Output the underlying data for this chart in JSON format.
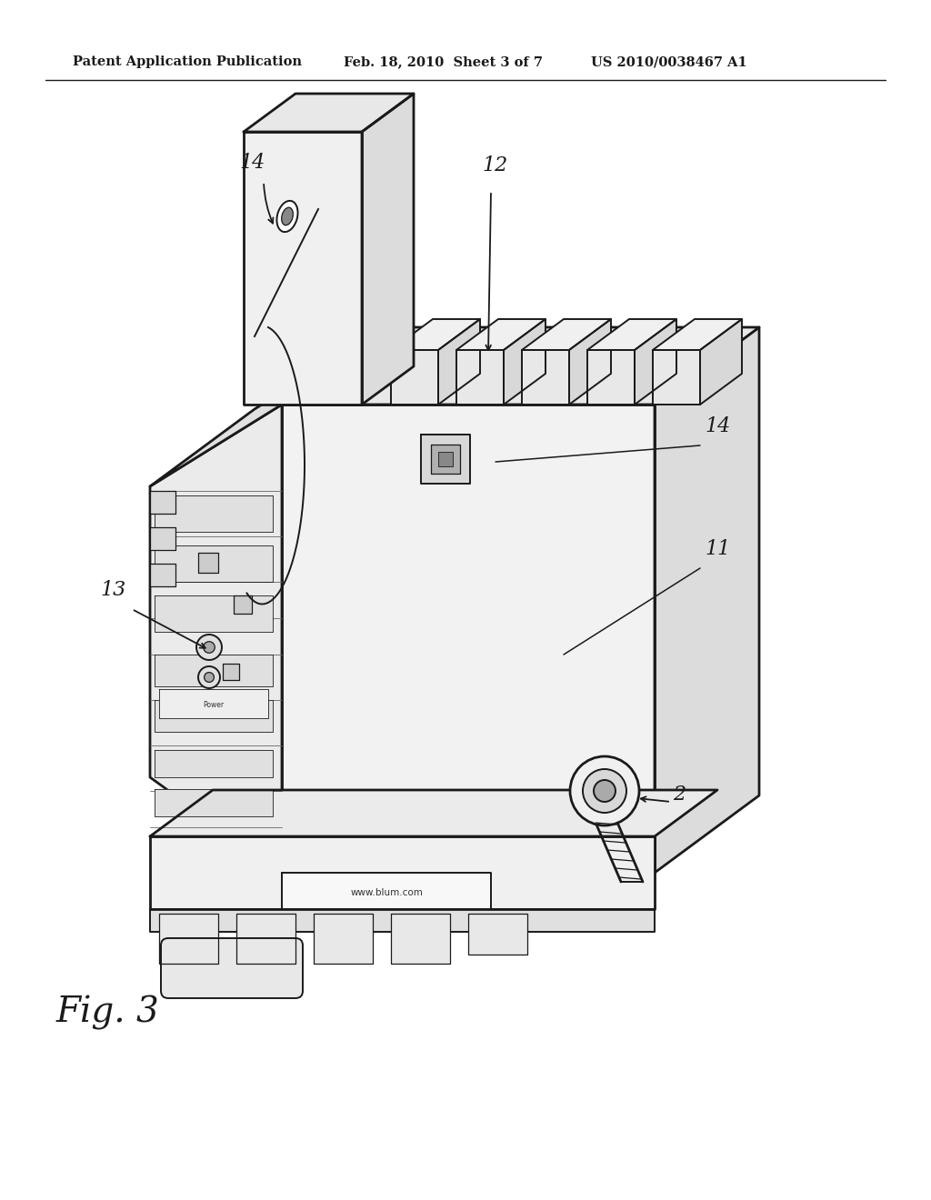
{
  "header_left": "Patent Application Publication",
  "header_center": "Feb. 18, 2010  Sheet 3 of 7",
  "header_right": "US 2010/0038467 A1",
  "figure_label": "Fig. 3",
  "bg_color": "#ffffff",
  "line_color": "#1a1a1a",
  "label_2": "2",
  "label_11": "11",
  "label_12": "12",
  "label_13": "13",
  "label_14_top": "14",
  "label_14_right": "14",
  "header_fontsize": 10.5,
  "fig_label_fontsize": 28,
  "annotation_fontsize": 16
}
